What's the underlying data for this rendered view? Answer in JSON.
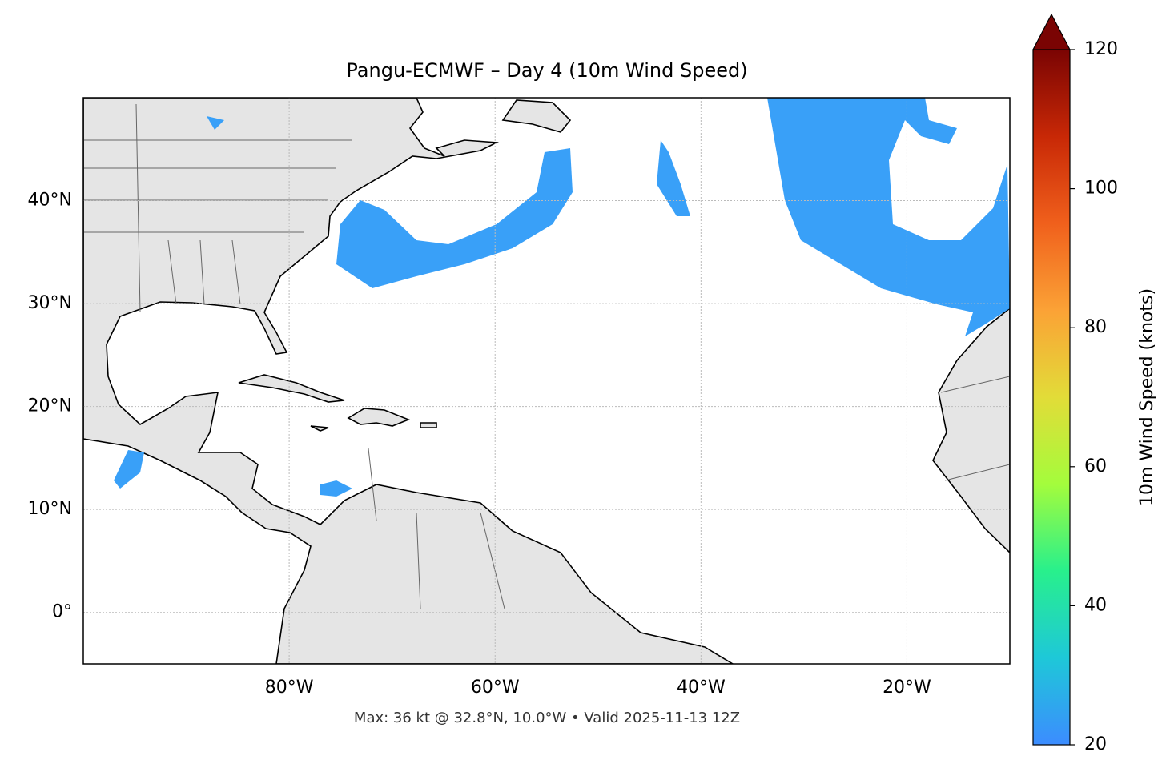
{
  "chart_data": {
    "type": "map",
    "title": "Pangu-ECMWF – Day 4 (10m Wind Speed)",
    "annotation": "Max: 36 kt @ 32.8°N, 10.0°W • Valid 2025-11-13 12Z",
    "xlim": [
      -100,
      -10
    ],
    "ylim": [
      -5,
      50
    ],
    "xticks": [
      {
        "value": -80,
        "label": "80°W"
      },
      {
        "value": -60,
        "label": "60°W"
      },
      {
        "value": -40,
        "label": "40°W"
      },
      {
        "value": -20,
        "label": "20°W"
      }
    ],
    "yticks": [
      {
        "value": 0,
        "label": "0°"
      },
      {
        "value": 10,
        "label": "10°N"
      },
      {
        "value": 20,
        "label": "20°N"
      },
      {
        "value": 30,
        "label": "30°N"
      },
      {
        "value": 40,
        "label": "40°N"
      }
    ],
    "grid": true,
    "colorbar": {
      "label": "10m Wind Speed (knots)",
      "lim": [
        20,
        120
      ],
      "ticks": [
        20,
        40,
        60,
        80,
        100,
        120
      ],
      "colors": [
        "#3c8cff",
        "#1ec8d8",
        "#28f08c",
        "#a4fc3c",
        "#e2dc38",
        "#fba236",
        "#f0601c",
        "#c82806",
        "#7a0403"
      ]
    }
  }
}
